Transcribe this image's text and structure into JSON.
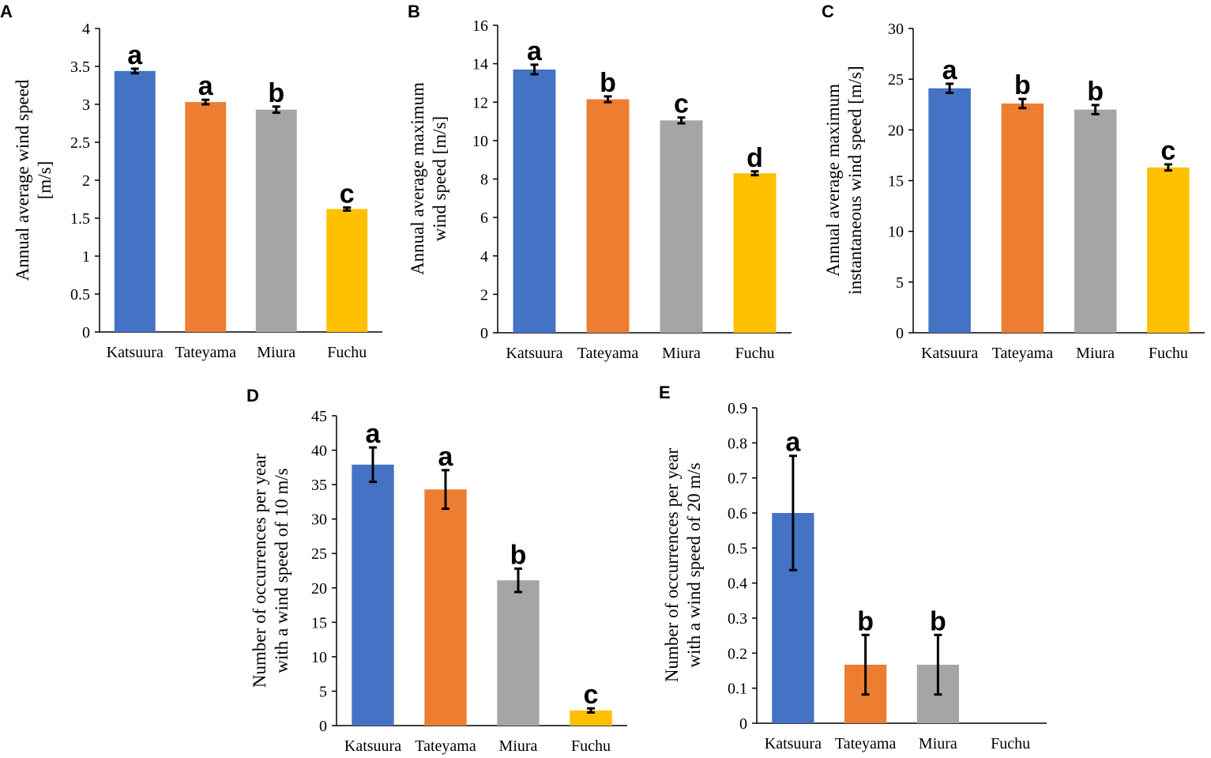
{
  "chart_data": [
    {
      "panel": "A",
      "type": "bar",
      "categories": [
        "Katsuura",
        "Tateyama",
        "Miura",
        "Fuchu"
      ],
      "values": [
        3.44,
        3.03,
        2.93,
        1.62
      ],
      "errors": [
        0.03,
        0.03,
        0.04,
        0.02
      ],
      "letters": [
        "a",
        "a",
        "b",
        "c"
      ],
      "colors": [
        "#4472C4",
        "#ED7D31",
        "#A5A5A5",
        "#FFC000"
      ],
      "ylabel": [
        "Annual average wind speed",
        "[m/s]"
      ],
      "ylim": [
        0,
        4
      ],
      "yticks": [
        "0",
        "0.5",
        "1",
        "1.5",
        "2",
        "2.5",
        "3",
        "3.5",
        "4"
      ]
    },
    {
      "panel": "B",
      "type": "bar",
      "categories": [
        "Katsuura",
        "Tateyama",
        "Miura",
        "Fuchu"
      ],
      "values": [
        13.7,
        12.15,
        11.05,
        8.3
      ],
      "errors": [
        0.25,
        0.15,
        0.15,
        0.1
      ],
      "letters": [
        "a",
        "b",
        "c",
        "d"
      ],
      "colors": [
        "#4472C4",
        "#ED7D31",
        "#A5A5A5",
        "#FFC000"
      ],
      "ylabel": [
        "Annual average maximum",
        "wind speed [m/s]"
      ],
      "ylim": [
        0,
        16
      ],
      "yticks": [
        "0",
        "2",
        "4",
        "6",
        "8",
        "10",
        "12",
        "14",
        "16"
      ]
    },
    {
      "panel": "C",
      "type": "bar",
      "categories": [
        "Katsuura",
        "Tateyama",
        "Miura",
        "Fuchu"
      ],
      "values": [
        24.1,
        22.6,
        22.0,
        16.3
      ],
      "errors": [
        0.45,
        0.45,
        0.45,
        0.3
      ],
      "letters": [
        "a",
        "b",
        "b",
        "c"
      ],
      "colors": [
        "#4472C4",
        "#ED7D31",
        "#A5A5A5",
        "#FFC000"
      ],
      "ylabel": [
        "Annual average maximum",
        "instantaneous wind speed [m/s]"
      ],
      "ylim": [
        0,
        30
      ],
      "yticks": [
        "0",
        "5",
        "10",
        "15",
        "20",
        "25",
        "30"
      ]
    },
    {
      "panel": "D",
      "type": "bar",
      "categories": [
        "Katsuura",
        "Tateyama",
        "Miura",
        "Fuchu"
      ],
      "values": [
        37.9,
        34.3,
        21.1,
        2.2
      ],
      "errors": [
        2.5,
        2.8,
        1.7,
        0.3
      ],
      "letters": [
        "a",
        "a",
        "b",
        "c"
      ],
      "colors": [
        "#4472C4",
        "#ED7D31",
        "#A5A5A5",
        "#FFC000"
      ],
      "ylabel": [
        "Number of occurrences per year",
        "with a wind speed of 10 m/s"
      ],
      "ylim": [
        0,
        45
      ],
      "yticks": [
        "0",
        "5",
        "10",
        "15",
        "20",
        "25",
        "30",
        "35",
        "40",
        "45"
      ]
    },
    {
      "panel": "E",
      "type": "bar",
      "categories": [
        "Katsuura",
        "Tateyama",
        "Miura",
        "Fuchu"
      ],
      "values": [
        0.6,
        0.167,
        0.167,
        0
      ],
      "errors": [
        0.163,
        0.085,
        0.085,
        0
      ],
      "letters": [
        "a",
        "b",
        "b",
        ""
      ],
      "colors": [
        "#4472C4",
        "#ED7D31",
        "#A5A5A5",
        "#FFC000"
      ],
      "ylabel": [
        "Number of occurrences per year",
        "with a wind speed of 20 m/s"
      ],
      "ylim": [
        0,
        0.9
      ],
      "yticks": [
        "0",
        "0.1",
        "0.2",
        "0.3",
        "0.4",
        "0.5",
        "0.6",
        "0.7",
        "0.8",
        "0.9"
      ]
    }
  ]
}
